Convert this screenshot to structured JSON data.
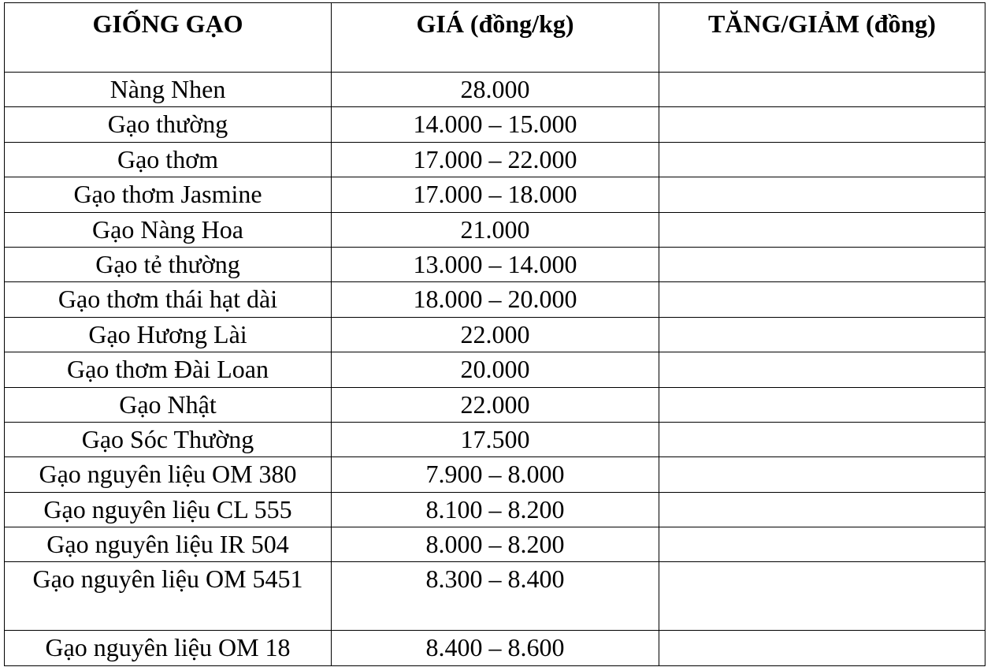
{
  "table": {
    "headers": [
      "GIỐNG GẠO",
      "GIÁ (đồng/kg)",
      "TĂNG/GIẢM (đồng)"
    ],
    "rows": [
      {
        "variety": "Nàng Nhen",
        "price": "28.000",
        "change": ""
      },
      {
        "variety": "Gạo thường",
        "price": "14.000 – 15.000",
        "change": ""
      },
      {
        "variety": "Gạo thơm",
        "price": "17.000 – 22.000",
        "change": ""
      },
      {
        "variety": "Gạo thơm Jasmine",
        "price": "17.000 – 18.000",
        "change": ""
      },
      {
        "variety": "Gạo Nàng Hoa",
        "price": "21.000",
        "change": ""
      },
      {
        "variety": "Gạo tẻ thường",
        "price": "13.000 – 14.000",
        "change": ""
      },
      {
        "variety": "Gạo thơm thái hạt dài",
        "price": "18.000 – 20.000",
        "change": ""
      },
      {
        "variety": "Gạo Hương Lài",
        "price": "22.000",
        "change": ""
      },
      {
        "variety": "Gạo thơm Đài Loan",
        "price": "20.000",
        "change": ""
      },
      {
        "variety": "Gạo Nhật",
        "price": "22.000",
        "change": ""
      },
      {
        "variety": "Gạo Sóc Thường",
        "price": "17.500",
        "change": ""
      },
      {
        "variety": "Gạo nguyên liệu OM 380",
        "price": "7.900 – 8.000",
        "change": ""
      },
      {
        "variety": "Gạo nguyên liệu CL 555",
        "price": "8.100 – 8.200",
        "change": ""
      },
      {
        "variety": "Gạo nguyên liệu IR 504",
        "price": "8.000 – 8.200",
        "change": ""
      },
      {
        "variety": "Gạo nguyên liệu OM 5451",
        "price": "8.300 – 8.400",
        "change": ""
      },
      {
        "variety": "Gạo nguyên liệu OM 18",
        "price": "8.400 – 8.600",
        "change": ""
      }
    ]
  }
}
